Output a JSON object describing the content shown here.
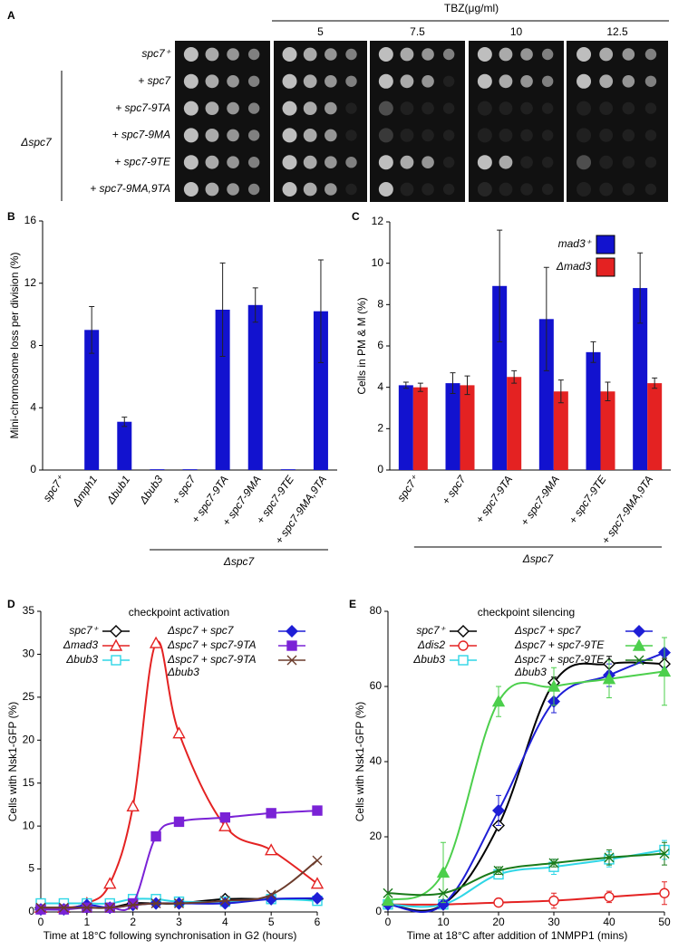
{
  "panel_a": {
    "panel": "A",
    "title": "TBZ(μg/ml)",
    "concentrations": [
      "5",
      "7.5",
      "10",
      "12.5"
    ],
    "rows": [
      "spc7⁺",
      "+ spc7",
      "+ spc7-9TA",
      "+ spc7-9MA",
      "+ spc7-9TE",
      "+ spc7-9MA,9TA"
    ],
    "group": "Δspc7"
  },
  "chart_data": [
    {
      "type": "bar",
      "panel": "B",
      "ylabel": "Mini-chromosome loss per division (%)",
      "categories": [
        "spc7⁺",
        "Δmph1",
        "Δbub1",
        "Δbub3",
        "+ spc7",
        "+ spc7-9TA",
        "+ spc7-9MA",
        "+ spc7-9TE",
        "+ spc7-9MA,9TA"
      ],
      "series": [
        {
          "color": "#1212cf",
          "values": [
            0,
            9.0,
            3.1,
            0.05,
            0.05,
            10.3,
            10.6,
            0.05,
            10.2
          ],
          "errors": [
            0,
            1.5,
            0.3,
            0,
            0,
            3.0,
            1.1,
            0,
            3.3
          ]
        }
      ],
      "group_label": "Δspc7",
      "ylim": [
        0,
        16
      ],
      "yticks": [
        0,
        4,
        8,
        12,
        16
      ]
    },
    {
      "type": "bar",
      "panel": "C",
      "ylabel": "Cells in PM & M (%)",
      "categories": [
        "spc7⁺",
        "+ spc7",
        "+ spc7-9TA",
        "+ spc7-9MA",
        "+ spc7-9TE",
        "+ spc7-9MA,9TA"
      ],
      "series": [
        {
          "name": "mad3⁺",
          "color": "#1212cf",
          "values": [
            4.1,
            4.2,
            8.9,
            7.3,
            5.7,
            8.8
          ],
          "errors": [
            0.15,
            0.5,
            2.7,
            2.5,
            0.5,
            1.7
          ]
        },
        {
          "name": "Δmad3",
          "color": "#e42222",
          "values": [
            4.0,
            4.1,
            4.5,
            3.8,
            3.8,
            4.2
          ],
          "errors": [
            0.2,
            0.45,
            0.3,
            0.55,
            0.45,
            0.25
          ]
        }
      ],
      "group_label": "Δspc7",
      "ylim": [
        0,
        12
      ],
      "yticks": [
        0,
        2,
        4,
        6,
        8,
        10,
        12
      ],
      "legend": "top-right"
    },
    {
      "type": "line",
      "panel": "D",
      "title": "checkpoint activation",
      "xlabel": "Time at 18°C following synchronisation in G2 (hours)",
      "ylabel": "Cells with Nsk1-GFP (%)",
      "x": [
        0,
        0.5,
        1,
        1.5,
        2,
        2.5,
        3,
        4,
        5,
        6
      ],
      "series": [
        {
          "name": "spc7⁺",
          "color": "#000000",
          "marker": "diamond-open",
          "values": [
            0.5,
            0.5,
            0.5,
            0.5,
            1,
            1,
            1,
            1.5,
            1.5,
            1.5
          ]
        },
        {
          "name": "Δmad3",
          "color": "#e42222",
          "marker": "triangle-open",
          "values": [
            0.5,
            0.5,
            1,
            3.3,
            12.3,
            31.3,
            20.8,
            10,
            7.2,
            3.3
          ]
        },
        {
          "name": "Δbub3",
          "color": "#2fd6e6",
          "marker": "square-open",
          "values": [
            1,
            1,
            1,
            1,
            1.5,
            1.5,
            1.2,
            1.2,
            1.5,
            1.3
          ]
        },
        {
          "name": "Δspc7 + spc7",
          "color": "#1e1ed6",
          "marker": "diamond",
          "values": [
            0.3,
            0.3,
            0.8,
            0.5,
            0.8,
            1,
            1,
            1,
            1.5,
            1.6
          ]
        },
        {
          "name": "Δspc7 + spc7-9TA",
          "color": "#7a22d6",
          "marker": "square",
          "values": [
            0.3,
            0.3,
            0.5,
            0.5,
            1,
            8.8,
            10.5,
            11,
            11.5,
            11.8
          ]
        },
        {
          "name": "Δspc7 + spc7-9TA\nΔbub3",
          "color": "#6b3b2b",
          "marker": "x",
          "values": [
            0.5,
            0.5,
            0.5,
            0.5,
            0.8,
            1,
            1,
            1.3,
            2,
            6
          ]
        }
      ],
      "xlim": [
        0,
        6
      ],
      "xticks": [
        0,
        1,
        2,
        3,
        4,
        5,
        6
      ],
      "ylim": [
        0,
        35
      ],
      "yticks": [
        0,
        5,
        10,
        15,
        20,
        25,
        30,
        35
      ]
    },
    {
      "type": "line",
      "panel": "E",
      "title": "checkpoint silencing",
      "xlabel": "Time at 18°C after addition of 1NMPP1 (mins)",
      "ylabel": "Cells with Nsk1-GFP (%)",
      "x": [
        0,
        10,
        20,
        30,
        40,
        50
      ],
      "series": [
        {
          "name": "spc7⁺",
          "color": "#000000",
          "marker": "diamond-open",
          "values": [
            2,
            2,
            23,
            61,
            66,
            66
          ],
          "errors": [
            0,
            0,
            1,
            1.5,
            2,
            1.5
          ]
        },
        {
          "name": "Δdis2",
          "color": "#e42222",
          "marker": "circle-open",
          "values": [
            2,
            2,
            2.5,
            3,
            4,
            5
          ],
          "errors": [
            0,
            0,
            1,
            2,
            1.5,
            3
          ]
        },
        {
          "name": "Δbub3",
          "color": "#2fd6e6",
          "marker": "square-open",
          "values": [
            2,
            2,
            10,
            12,
            14,
            16.5
          ],
          "errors": [
            0,
            0,
            1,
            2,
            2,
            2.5
          ]
        },
        {
          "name": "Δspc7 + spc7",
          "color": "#1e1ed6",
          "marker": "diamond",
          "values": [
            2,
            2,
            27,
            56,
            63,
            69
          ],
          "errors": [
            0,
            0,
            4,
            3,
            3,
            4
          ]
        },
        {
          "name": "Δspc7 + spc7-9TE",
          "color": "#4ccf4c",
          "marker": "triangle",
          "values": [
            3,
            10.5,
            56,
            60,
            62,
            64
          ],
          "errors": [
            0,
            8,
            4,
            5,
            5,
            9
          ]
        },
        {
          "name": "Δspc7 + spc7-9TE\nΔbub3",
          "color": "#1a7a1a",
          "marker": "x",
          "values": [
            5,
            5,
            11,
            13,
            14.5,
            15.5
          ],
          "errors": [
            0,
            0,
            1,
            1,
            2,
            3
          ]
        }
      ],
      "xlim": [
        0,
        50
      ],
      "xticks": [
        0,
        10,
        20,
        30,
        40,
        50
      ],
      "ylim": [
        0,
        80
      ],
      "yticks": [
        0,
        20,
        40,
        60,
        80
      ]
    }
  ]
}
